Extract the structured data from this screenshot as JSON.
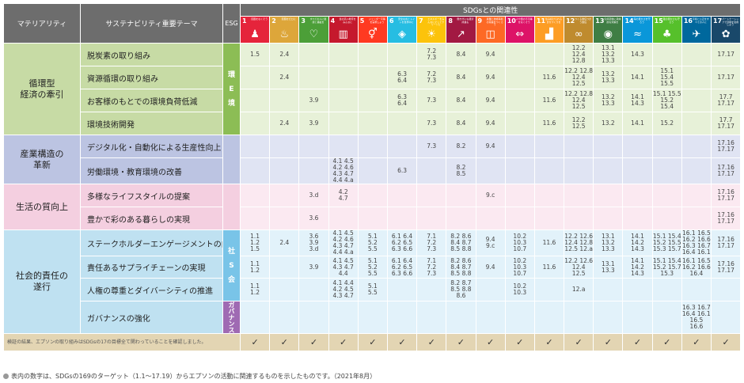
{
  "header": {
    "materiality": "マテリアリティ",
    "theme": "サステナビリティ重要テーマ",
    "esg": "ESG",
    "sdgs": "SDGsとの関連性"
  },
  "sdg_icons": [
    {
      "num": "1",
      "label": "貧困をなくそう",
      "color": "#e5243b",
      "glyph": "♟"
    },
    {
      "num": "2",
      "label": "飢餓をゼロに",
      "color": "#dda63a",
      "glyph": "♨"
    },
    {
      "num": "3",
      "label": "すべての人に健康と福祉を",
      "color": "#4c9f38",
      "glyph": "♡"
    },
    {
      "num": "4",
      "label": "質の高い教育をみんなに",
      "color": "#c5192d",
      "glyph": "▥"
    },
    {
      "num": "5",
      "label": "ジェンダー平等を実現しよう",
      "color": "#ff3a21",
      "glyph": "⚥"
    },
    {
      "num": "6",
      "label": "安全な水とトイレを世界中に",
      "color": "#26bde2",
      "glyph": "◈"
    },
    {
      "num": "7",
      "label": "エネルギーをみんなにそしてクリーンに",
      "color": "#fcc30b",
      "glyph": "☀"
    },
    {
      "num": "8",
      "label": "働きがいも経済成長も",
      "color": "#a21942",
      "glyph": "↗"
    },
    {
      "num": "9",
      "label": "産業と技術革新の基盤をつくろう",
      "color": "#fd6925",
      "glyph": "◫"
    },
    {
      "num": "10",
      "label": "人や国の不平等をなくそう",
      "color": "#dd1367",
      "glyph": "⇔"
    },
    {
      "num": "11",
      "label": "住み続けられるまちづくりを",
      "color": "#fd9d24",
      "glyph": "▟"
    },
    {
      "num": "12",
      "label": "つくる責任つかう責任",
      "color": "#bf8b2e",
      "glyph": "∞"
    },
    {
      "num": "13",
      "label": "気候変動に具体的な対策を",
      "color": "#3f7e44",
      "glyph": "◉"
    },
    {
      "num": "14",
      "label": "海の豊かさを守ろう",
      "color": "#0a97d9",
      "glyph": "≈"
    },
    {
      "num": "15",
      "label": "陸の豊かさも守ろう",
      "color": "#56c02b",
      "glyph": "♣"
    },
    {
      "num": "16",
      "label": "平和と公正をすべての人に",
      "color": "#00689d",
      "glyph": "✈"
    },
    {
      "num": "17",
      "label": "パートナーシップで目標を達成しよう",
      "color": "#19486a",
      "glyph": "✿"
    }
  ],
  "rows": [
    {
      "materiality": "循環型\n経済の牽引",
      "theme": "脱炭素の取り組み",
      "esg": "環\nE\n境",
      "cells": [
        "1.5",
        "2.4",
        "",
        "",
        "",
        "",
        "7.2\n7.3",
        "8.4",
        "9.4",
        "",
        "",
        "12.2\n12.4\n12.8",
        "13.1\n13.2\n13.3",
        "14.3",
        "",
        "",
        "17.17"
      ]
    },
    {
      "theme": "資源循環の取り組み",
      "cells": [
        "",
        "2.4",
        "",
        "",
        "",
        "6.3\n6.4",
        "7.2\n7.3",
        "8.4",
        "9.4",
        "",
        "11.6",
        "12.2 12.8\n12.4\n12.5",
        "13.2\n13.3",
        "14.1",
        "15.1\n15.4\n15.5",
        "",
        "17.17"
      ]
    },
    {
      "theme": "お客様のもとでの環境負荷低減",
      "cells": [
        "",
        "",
        "3.9",
        "",
        "",
        "6.3\n6.4",
        "7.3",
        "8.4",
        "9.4",
        "",
        "11.6",
        "12.2 12.8\n12.4\n12.5",
        "13.2\n13.3",
        "14.1\n14.3",
        "15.1 15.5\n15.2\n15.4",
        "",
        "17.7\n17.17"
      ]
    },
    {
      "theme": "環境技術開発",
      "cells": [
        "",
        "2.4",
        "3.9",
        "",
        "",
        "",
        "7.3",
        "8.4",
        "9.4",
        "",
        "11.6",
        "12.2\n12.5",
        "13.2",
        "14.1",
        "15.2",
        "",
        "17.7\n17.17"
      ]
    },
    {
      "materiality": "産業構造の\n革新",
      "theme": "デジタル化・自動化による生産性向上",
      "esg": "",
      "cells": [
        "",
        "",
        "",
        "",
        "",
        "",
        "7.3",
        "8.2",
        "9.4",
        "",
        "",
        "",
        "",
        "",
        "",
        "",
        "17.16\n17.17"
      ]
    },
    {
      "theme": "労働環境・教育環境の改善",
      "cells": [
        "",
        "",
        "",
        "4.1 4.5\n4.2 4.6\n4.3 4.7\n4.4 4.a",
        "",
        "6.3",
        "",
        "8.2\n8.5",
        "",
        "",
        "",
        "",
        "",
        "",
        "",
        "",
        "17.16\n17.17"
      ]
    },
    {
      "materiality": "生活の質向上",
      "theme": "多様なライフスタイルの提案",
      "esg": "",
      "cells": [
        "",
        "",
        "3.d",
        "4.2\n4.7",
        "",
        "",
        "",
        "",
        "9.c",
        "",
        "",
        "",
        "",
        "",
        "",
        "",
        "17.16\n17.17"
      ]
    },
    {
      "theme": "豊かで彩のある暮らしの実現",
      "cells": [
        "",
        "",
        "3.6",
        "",
        "",
        "",
        "",
        "",
        "",
        "",
        "",
        "",
        "",
        "",
        "",
        "",
        "17.16\n17.17"
      ]
    },
    {
      "materiality": "社会的責任の\n遂行",
      "theme": "ステークホルダーエンゲージメントの向上",
      "esg": "社\nS\n会",
      "cells": [
        "1.1\n1.2\n1.5",
        "2.4",
        "3.6\n3.9\n3.d",
        "4.1 4.5\n4.2 4.6\n4.3 4.7\n4.4 4.a",
        "5.1\n5.2\n5.5",
        "6.1 6.4\n6.2 6.5\n6.3 6.6",
        "7.1\n7.2\n7.3",
        "8.2 8.6\n8.4 8.7\n8.5 8.8",
        "9.4\n9.c",
        "10.2\n10.3\n10.7",
        "11.6",
        "12.2 12.6\n12.4 12.8\n12.5 12.a",
        "13.1\n13.2\n13.3",
        "14.1\n14.2\n14.3",
        "15.1 15.4\n15.2 15.5\n15.3 15.7",
        "16.1 16.5\n16.2 16.6\n16.3 16.7\n16.4 16.10",
        "17.16\n17.17"
      ]
    },
    {
      "theme": "責任あるサプライチェーンの実現",
      "cells": [
        "1.1\n1.2",
        "",
        "3.9",
        "4.1 4.5\n4.3 4.7\n4.4",
        "5.1\n5.2\n5.5",
        "6.1 6.4\n6.2 6.5\n6.3 6.6",
        "7.1\n7.2\n7.3",
        "8.2 8.6\n8.4 8.7\n8.5 8.8",
        "9.4",
        "10.2\n10.3\n10.7",
        "11.6",
        "12.2 12.6\n12.4\n12.5",
        "13.1\n13.3",
        "14.1\n14.2\n14.3",
        "15.1 15.4\n15.2 15.7\n15.3",
        "16.1 16.5\n16.2 16.6\n16.4",
        "17.16\n17.17"
      ]
    },
    {
      "theme": "人権の尊重とダイバーシティの推進",
      "cells": [
        "1.1\n1.2",
        "",
        "",
        "4.1 4.4\n4.2 4.5\n4.3 4.7",
        "5.1\n5.5",
        "",
        "",
        "8.2 8.7\n8.5 8.8\n8.6",
        "",
        "10.2\n10.3",
        "",
        "12.a",
        "",
        "",
        "",
        "",
        ""
      ]
    },
    {
      "theme": "ガバナンスの強化",
      "esg": "ガバナンス",
      "cells": [
        "",
        "",
        "",
        "",
        "",
        "",
        "",
        "",
        "",
        "",
        "",
        "",
        "",
        "",
        "",
        "16.3 16.7\n16.4 16.10\n16.5\n16.6",
        ""
      ]
    }
  ],
  "footer": {
    "text": "検証の結果、エプソンの取り組みはSDGsの17の目標全て関わっていることを確認しました。",
    "check": "✓"
  },
  "note": "表内の数字は、SDGsの169のターゲット（1.1〜17.19）からエプソンの活動に関連するものを示したものです。（2021年8月）",
  "colors": {
    "green_dark": "#c7dba5",
    "green_light": "#e7f1d8",
    "green_esg": "#8cbd55",
    "blue_dark": "#bcc4e2",
    "blue_light": "#e0e4f3",
    "pink_dark": "#f4cfe0",
    "pink_light": "#fbe9f1",
    "cyan_dark": "#bfe1f1",
    "cyan_light": "#e2f2fa",
    "cyan_esg": "#79c4e8",
    "purple_esg": "#9f6ab3"
  }
}
